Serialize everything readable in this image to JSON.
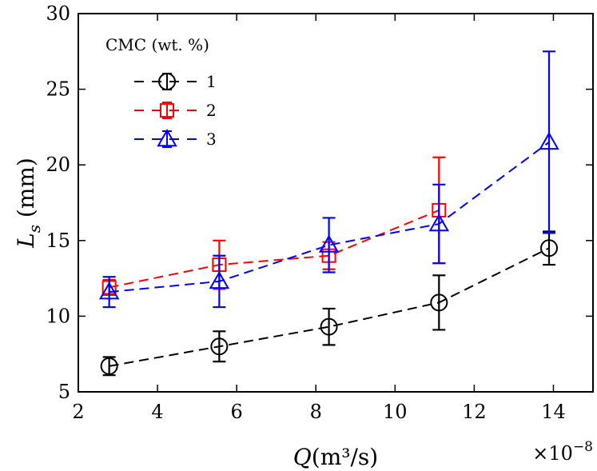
{
  "chart_data": {
    "type": "line",
    "title": "",
    "xlabel": "Q(m³/s)",
    "xlabel_italic_part": "Q",
    "xlabel_unit_part": "(m³/s)",
    "ylabel": "Ls (mm)",
    "ylabel_symbol": "L",
    "ylabel_subscript": "s",
    "ylabel_unit": " (mm)",
    "x_multiplier": "×10⁻⁸",
    "x_multiplier_base": "×10",
    "x_multiplier_exp": "−8",
    "xlim": [
      2,
      15
    ],
    "ylim": [
      5,
      30
    ],
    "xticks": [
      2,
      4,
      6,
      8,
      10,
      12,
      14
    ],
    "yticks": [
      5,
      10,
      15,
      20,
      25,
      30
    ],
    "xtick_labels": [
      "2",
      "4",
      "6",
      "8",
      "10",
      "12",
      "14"
    ],
    "ytick_labels": [
      "5",
      "10",
      "15",
      "20",
      "25",
      "30"
    ],
    "grid": false,
    "legend_title": "CMC (wt. %)",
    "legend_position": "top-left",
    "series": [
      {
        "name": "1",
        "color": "#000000",
        "marker": "circle",
        "x": [
          2.78,
          5.56,
          8.33,
          11.11,
          13.89
        ],
        "values": [
          6.7,
          8.0,
          9.3,
          10.9,
          14.5
        ],
        "errors": [
          0.6,
          1.0,
          1.2,
          1.8,
          1.1
        ]
      },
      {
        "name": "2",
        "color": "#ff0000",
        "marker": "square",
        "x": [
          2.78,
          5.56,
          8.33,
          11.11
        ],
        "values": [
          11.9,
          13.4,
          14.0,
          17.0
        ],
        "errors": [
          0.5,
          1.6,
          0.9,
          3.5
        ]
      },
      {
        "name": "3",
        "color": "#0000ff",
        "marker": "triangle",
        "x": [
          2.78,
          5.56,
          8.33,
          11.11,
          13.89
        ],
        "values": [
          11.6,
          12.3,
          14.7,
          16.1,
          21.5
        ],
        "errors": [
          1.0,
          1.7,
          1.8,
          2.6,
          6.0
        ]
      }
    ]
  }
}
